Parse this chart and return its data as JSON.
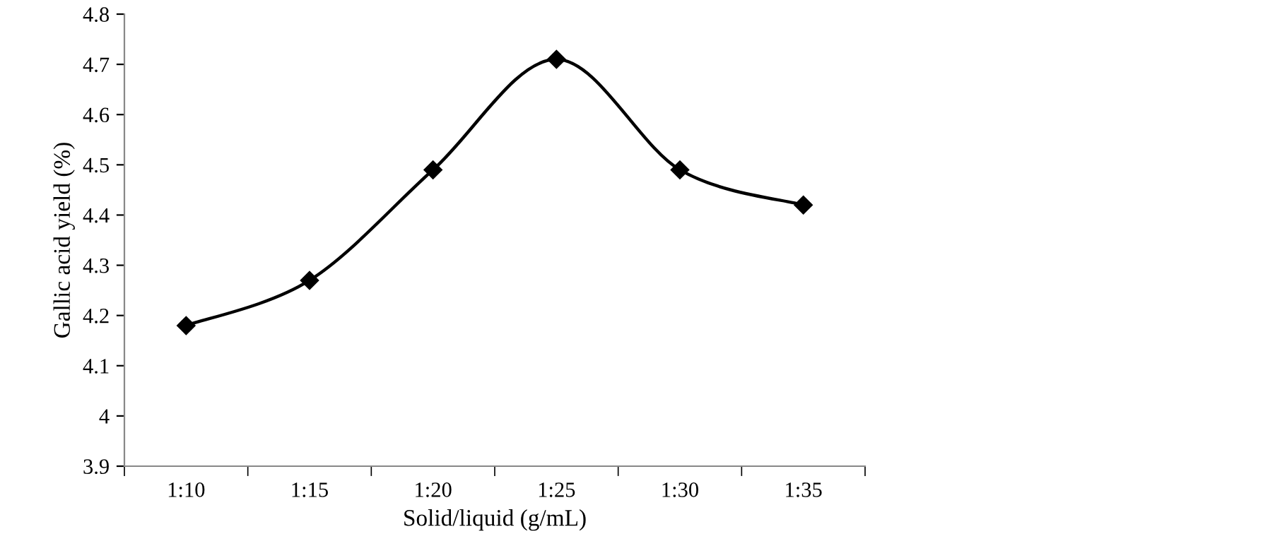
{
  "chart_data": {
    "type": "line",
    "xlabel": "Solid/liquid (g/mL)",
    "ylabel": "Gallic acid yield (%)",
    "categories": [
      "1:10",
      "1:15",
      "1:20",
      "1:25",
      "1:30",
      "1:35"
    ],
    "series": [
      {
        "color": "#000000",
        "values": [
          4.18,
          4.27,
          4.49,
          4.71,
          4.49,
          4.42
        ]
      }
    ],
    "ylim": [
      3.9,
      4.8
    ],
    "yticks": [
      3.9,
      4,
      4.1,
      4.2,
      4.3,
      4.4,
      4.5,
      4.6,
      4.7,
      4.8
    ],
    "marker": "diamond",
    "line_style": "solid",
    "grid": false
  }
}
